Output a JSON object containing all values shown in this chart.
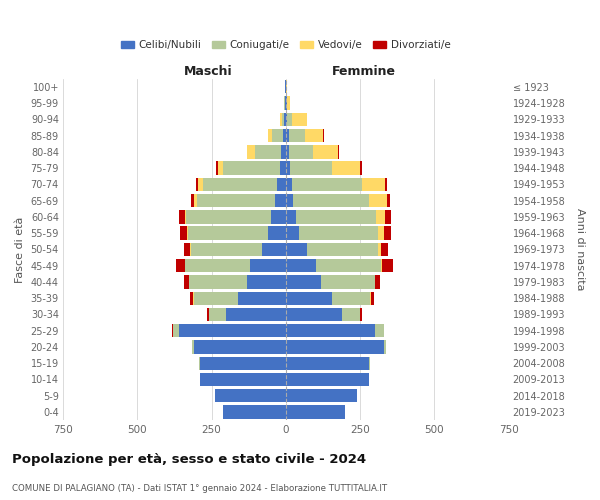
{
  "age_groups": [
    "0-4",
    "5-9",
    "10-14",
    "15-19",
    "20-24",
    "25-29",
    "30-34",
    "35-39",
    "40-44",
    "45-49",
    "50-54",
    "55-59",
    "60-64",
    "65-69",
    "70-74",
    "75-79",
    "80-84",
    "85-89",
    "90-94",
    "95-99",
    "100+"
  ],
  "birth_years": [
    "2019-2023",
    "2014-2018",
    "2009-2013",
    "2004-2008",
    "1999-2003",
    "1994-1998",
    "1989-1993",
    "1984-1988",
    "1979-1983",
    "1974-1978",
    "1969-1973",
    "1964-1968",
    "1959-1963",
    "1954-1958",
    "1949-1953",
    "1944-1948",
    "1939-1943",
    "1934-1938",
    "1929-1933",
    "1924-1928",
    "≤ 1923"
  ],
  "maschi_celibi": [
    210,
    240,
    290,
    290,
    310,
    360,
    200,
    160,
    130,
    120,
    80,
    60,
    50,
    35,
    30,
    20,
    15,
    10,
    5,
    3,
    2
  ],
  "maschi_coniugati": [
    0,
    0,
    0,
    2,
    5,
    20,
    60,
    150,
    195,
    220,
    240,
    270,
    285,
    265,
    250,
    190,
    90,
    35,
    8,
    2,
    1
  ],
  "maschi_vedovi": [
    0,
    0,
    0,
    0,
    0,
    0,
    0,
    1,
    1,
    1,
    2,
    3,
    5,
    10,
    15,
    20,
    25,
    15,
    8,
    1,
    0
  ],
  "maschi_divorziati": [
    0,
    0,
    0,
    0,
    0,
    2,
    5,
    10,
    18,
    30,
    20,
    22,
    18,
    10,
    8,
    5,
    2,
    1,
    0,
    0,
    0
  ],
  "femmine_celibi": [
    200,
    240,
    280,
    280,
    330,
    300,
    190,
    155,
    120,
    100,
    70,
    45,
    35,
    25,
    20,
    15,
    10,
    10,
    5,
    3,
    2
  ],
  "femmine_coniugati": [
    0,
    0,
    0,
    3,
    8,
    30,
    60,
    130,
    180,
    220,
    240,
    265,
    270,
    255,
    235,
    140,
    80,
    55,
    15,
    2,
    0
  ],
  "femmine_vedovi": [
    0,
    0,
    0,
    0,
    0,
    0,
    0,
    2,
    2,
    5,
    10,
    20,
    30,
    60,
    80,
    95,
    85,
    60,
    50,
    8,
    2
  ],
  "femmine_divorziati": [
    0,
    0,
    0,
    0,
    0,
    2,
    5,
    10,
    15,
    35,
    25,
    25,
    18,
    10,
    5,
    5,
    3,
    2,
    0,
    0,
    0
  ],
  "color_celibi": "#4472c4",
  "color_coniugati": "#b5c99a",
  "color_vedovi": "#ffd966",
  "color_divorziati": "#c00000",
  "title": "Popolazione per età, sesso e stato civile - 2024",
  "subtitle": "COMUNE DI PALAGIANO (TA) - Dati ISTAT 1° gennaio 2024 - Elaborazione TUTTITALIA.IT",
  "ylabel_left": "Fasce di età",
  "ylabel_right": "Anni di nascita",
  "xlabel_left": "Maschi",
  "xlabel_right": "Femmine",
  "xlim": 750,
  "bg_color": "#ffffff",
  "grid_color": "#cccccc"
}
